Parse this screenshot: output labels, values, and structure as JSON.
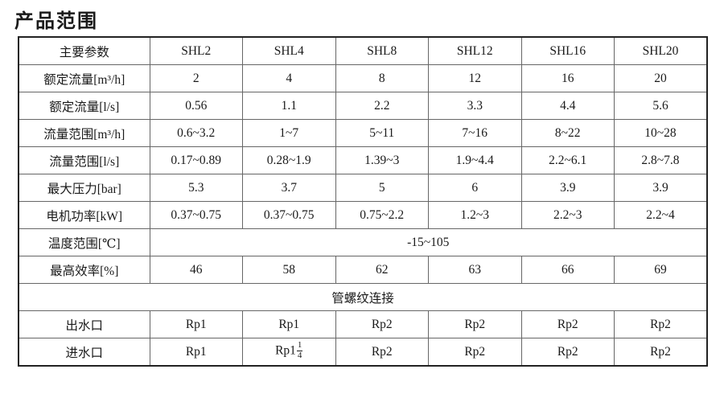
{
  "page_title": "产品范围",
  "colors": {
    "text": "#1a1a1a",
    "border_outer": "#222222",
    "border_inner": "#666666",
    "bg": "#ffffff"
  },
  "table": {
    "header": {
      "label": "主要参数",
      "columns": [
        "SHL2",
        "SHL4",
        "SHL8",
        "SHL12",
        "SHL16",
        "SHL20"
      ]
    },
    "rows": [
      {
        "type": "data",
        "label": "额定流量[m³/h]",
        "values": [
          "2",
          "4",
          "8",
          "12",
          "16",
          "20"
        ]
      },
      {
        "type": "data",
        "label": "额定流量[l/s]",
        "values": [
          "0.56",
          "1.1",
          "2.2",
          "3.3",
          "4.4",
          "5.6"
        ]
      },
      {
        "type": "data",
        "label": "流量范围[m³/h]",
        "values": [
          "0.6~3.2",
          "1~7",
          "5~11",
          "7~16",
          "8~22",
          "10~28"
        ]
      },
      {
        "type": "data",
        "label": "流量范围[l/s]",
        "values": [
          "0.17~0.89",
          "0.28~1.9",
          "1.39~3",
          "1.9~4.4",
          "2.2~6.1",
          "2.8~7.8"
        ]
      },
      {
        "type": "data",
        "label": "最大压力[bar]",
        "values": [
          "5.3",
          "3.7",
          "5",
          "6",
          "3.9",
          "3.9"
        ]
      },
      {
        "type": "data",
        "label": "电机功率[kW]",
        "values": [
          "0.37~0.75",
          "0.37~0.75",
          "0.75~2.2",
          "1.2~3",
          "2.2~3",
          "2.2~4"
        ]
      },
      {
        "type": "span_value",
        "label": "温度范围[℃]",
        "value": "-15~105"
      },
      {
        "type": "data",
        "label": "最高效率[%]",
        "values": [
          "46",
          "58",
          "62",
          "63",
          "66",
          "69"
        ]
      },
      {
        "type": "full_span",
        "value": "管螺纹连接"
      },
      {
        "type": "data",
        "label": "出水口",
        "values": [
          "Rp1",
          "Rp1",
          "Rp2",
          "Rp2",
          "Rp2",
          "Rp2"
        ]
      },
      {
        "type": "data",
        "label": "进水口",
        "values": [
          "Rp1",
          {
            "text": "Rp1",
            "frac_num": "1",
            "frac_den": "4"
          },
          "Rp2",
          "Rp2",
          "Rp2",
          "Rp2"
        ]
      }
    ]
  }
}
